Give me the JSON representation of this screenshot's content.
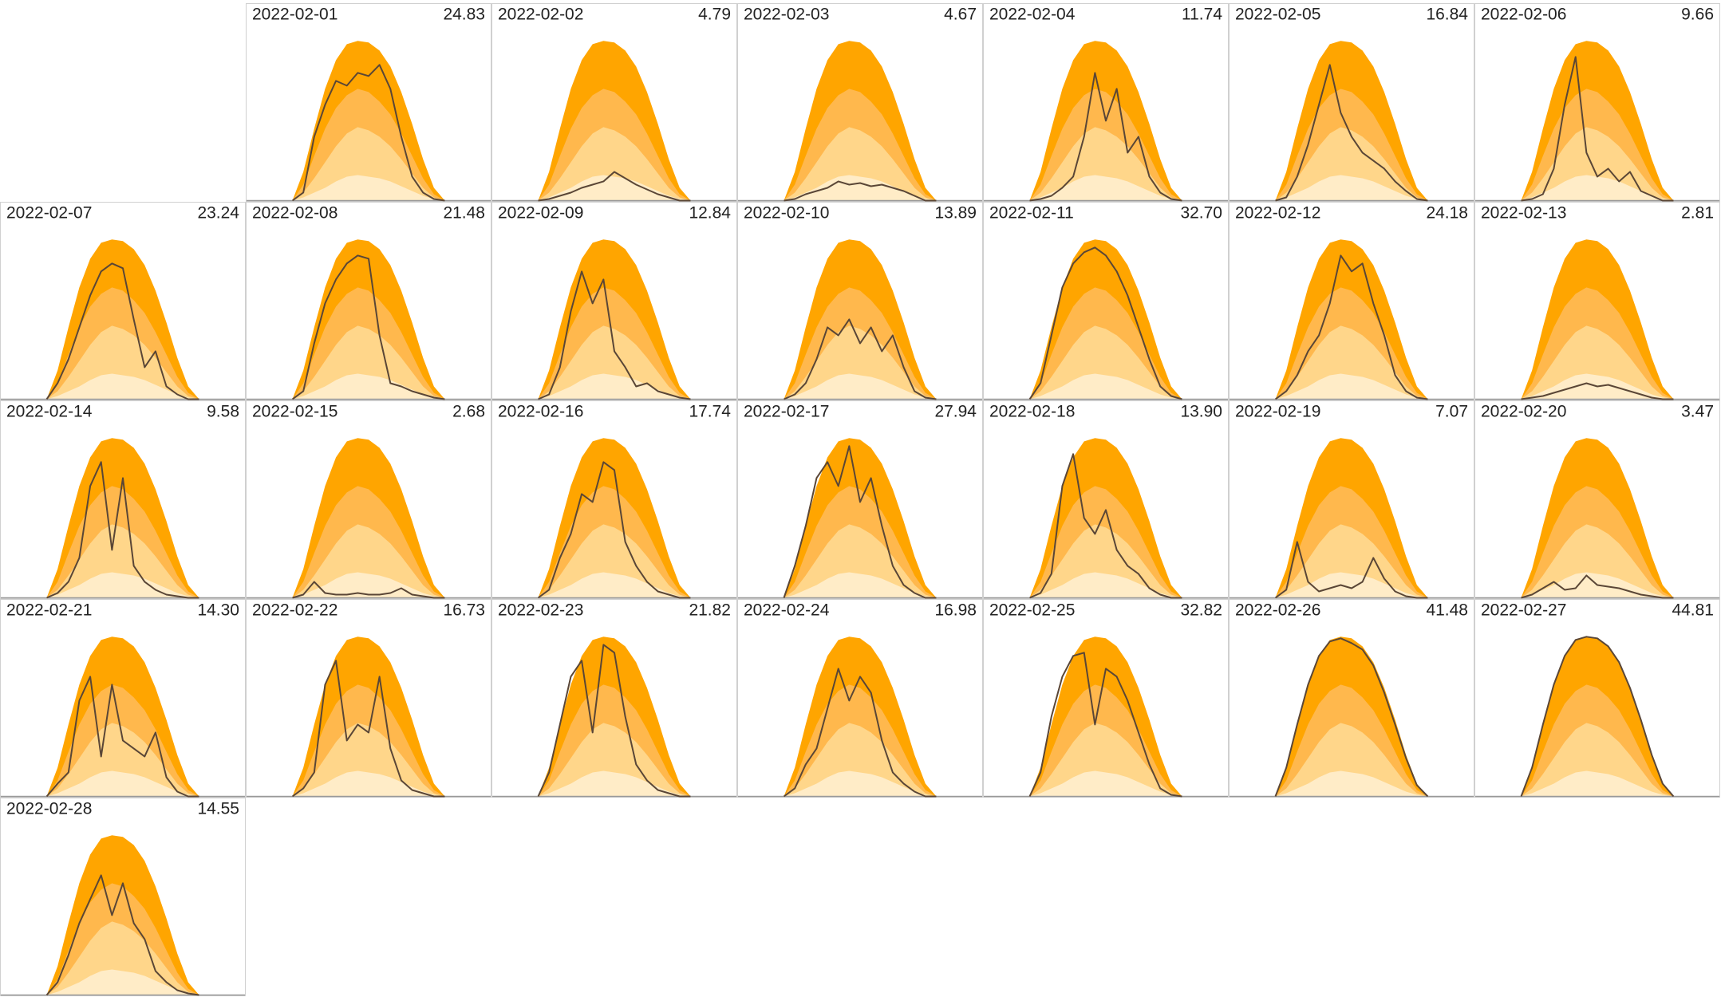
{
  "chart_data": {
    "type": "area",
    "ylim": [
      0,
      100
    ],
    "line_color": "#5a4636",
    "bands": [
      {
        "color": "#ffa500",
        "values": [
          0,
          18,
          45,
          70,
          88,
          98,
          100,
          99,
          94,
          84,
          68,
          48,
          26,
          8,
          0
        ]
      },
      {
        "color": "#ffb84d",
        "values": [
          0,
          10,
          28,
          45,
          58,
          66,
          70,
          68,
          62,
          54,
          42,
          28,
          14,
          4,
          0
        ]
      },
      {
        "color": "#ffd68a",
        "values": [
          0,
          5,
          14,
          24,
          34,
          42,
          46,
          44,
          40,
          34,
          26,
          17,
          8,
          2,
          0
        ]
      },
      {
        "color": "#ffecc7",
        "values": [
          0,
          2,
          5,
          8,
          12,
          15,
          16,
          15,
          14,
          12,
          9,
          6,
          3,
          1,
          0
        ]
      }
    ],
    "days": [
      {
        "date": "2022-02-01",
        "total": 24.83,
        "values": [
          0,
          5,
          40,
          60,
          75,
          72,
          80,
          78,
          85,
          70,
          40,
          15,
          5,
          1,
          0
        ]
      },
      {
        "date": "2022-02-02",
        "total": 4.79,
        "values": [
          0,
          1,
          3,
          5,
          8,
          10,
          12,
          18,
          14,
          10,
          7,
          4,
          2,
          0,
          0
        ]
      },
      {
        "date": "2022-02-03",
        "total": 4.67,
        "values": [
          0,
          1,
          4,
          6,
          8,
          12,
          10,
          11,
          9,
          10,
          8,
          6,
          3,
          0,
          0
        ]
      },
      {
        "date": "2022-02-04",
        "total": 11.74,
        "values": [
          0,
          1,
          3,
          8,
          15,
          40,
          80,
          50,
          70,
          30,
          40,
          15,
          5,
          1,
          0
        ]
      },
      {
        "date": "2022-02-05",
        "total": 16.84,
        "values": [
          0,
          2,
          15,
          35,
          60,
          85,
          55,
          40,
          30,
          25,
          20,
          12,
          6,
          1,
          0
        ]
      },
      {
        "date": "2022-02-06",
        "total": 9.66,
        "values": [
          0,
          1,
          4,
          20,
          60,
          90,
          30,
          15,
          20,
          12,
          18,
          6,
          3,
          0,
          0
        ]
      },
      {
        "date": "2022-02-07",
        "total": 23.24,
        "values": [
          0,
          10,
          25,
          45,
          65,
          80,
          85,
          82,
          50,
          20,
          30,
          8,
          3,
          0,
          0
        ]
      },
      {
        "date": "2022-02-08",
        "total": 21.48,
        "values": [
          0,
          5,
          35,
          60,
          75,
          85,
          90,
          88,
          40,
          10,
          8,
          5,
          3,
          1,
          0
        ]
      },
      {
        "date": "2022-02-09",
        "total": 12.84,
        "values": [
          0,
          3,
          20,
          55,
          80,
          60,
          75,
          30,
          20,
          8,
          10,
          5,
          3,
          1,
          0
        ]
      },
      {
        "date": "2022-02-10",
        "total": 13.89,
        "values": [
          0,
          3,
          10,
          25,
          45,
          40,
          50,
          35,
          45,
          30,
          40,
          20,
          5,
          1,
          0
        ]
      },
      {
        "date": "2022-02-11",
        "total": 32.7,
        "total_label": "32.70",
        "values": [
          0,
          10,
          40,
          70,
          85,
          92,
          95,
          90,
          80,
          65,
          45,
          25,
          8,
          2,
          0
        ]
      },
      {
        "date": "2022-02-12",
        "total": 24.18,
        "values": [
          0,
          5,
          15,
          30,
          40,
          60,
          90,
          80,
          85,
          60,
          40,
          15,
          5,
          1,
          0
        ]
      },
      {
        "date": "2022-02-13",
        "total": 2.81,
        "values": [
          0,
          1,
          2,
          4,
          6,
          8,
          10,
          8,
          9,
          7,
          5,
          3,
          1,
          0,
          0
        ]
      },
      {
        "date": "2022-02-14",
        "total": 9.58,
        "values": [
          0,
          3,
          10,
          25,
          70,
          85,
          30,
          75,
          20,
          10,
          5,
          2,
          1,
          0,
          0
        ]
      },
      {
        "date": "2022-02-15",
        "total": 2.68,
        "values": [
          0,
          2,
          10,
          3,
          2,
          2,
          3,
          2,
          2,
          3,
          6,
          2,
          1,
          0,
          0
        ]
      },
      {
        "date": "2022-02-16",
        "total": 17.74,
        "values": [
          0,
          5,
          25,
          40,
          65,
          60,
          85,
          80,
          35,
          20,
          10,
          4,
          2,
          0,
          0
        ]
      },
      {
        "date": "2022-02-17",
        "total": 27.94,
        "values": [
          0,
          20,
          45,
          75,
          85,
          70,
          95,
          60,
          75,
          45,
          20,
          8,
          3,
          0,
          0
        ]
      },
      {
        "date": "2022-02-18",
        "total": 13.9,
        "total_label": "13.90",
        "values": [
          0,
          3,
          15,
          70,
          90,
          50,
          40,
          55,
          30,
          20,
          15,
          6,
          2,
          0,
          0
        ]
      },
      {
        "date": "2022-02-19",
        "total": 7.07,
        "values": [
          0,
          5,
          35,
          10,
          4,
          6,
          8,
          6,
          10,
          25,
          12,
          4,
          1,
          0,
          0
        ]
      },
      {
        "date": "2022-02-20",
        "total": 3.47,
        "values": [
          0,
          2,
          6,
          10,
          5,
          6,
          14,
          8,
          7,
          6,
          4,
          2,
          1,
          0,
          0
        ]
      },
      {
        "date": "2022-02-21",
        "total": 14.3,
        "total_label": "14.30",
        "values": [
          0,
          8,
          15,
          60,
          75,
          25,
          70,
          35,
          30,
          25,
          40,
          12,
          3,
          0,
          0
        ]
      },
      {
        "date": "2022-02-22",
        "total": 16.73,
        "values": [
          0,
          5,
          15,
          70,
          85,
          35,
          45,
          40,
          75,
          30,
          10,
          4,
          2,
          0,
          0
        ]
      },
      {
        "date": "2022-02-23",
        "total": 21.82,
        "values": [
          0,
          15,
          45,
          75,
          85,
          40,
          95,
          90,
          50,
          20,
          10,
          4,
          2,
          0,
          0
        ]
      },
      {
        "date": "2022-02-24",
        "total": 16.98,
        "values": [
          0,
          5,
          20,
          30,
          55,
          80,
          60,
          75,
          65,
          35,
          15,
          8,
          3,
          0,
          0
        ]
      },
      {
        "date": "2022-02-25",
        "total": 32.82,
        "values": [
          0,
          15,
          50,
          75,
          88,
          90,
          45,
          80,
          75,
          60,
          40,
          20,
          5,
          1,
          0
        ]
      },
      {
        "date": "2022-02-26",
        "total": 41.48,
        "values": [
          0,
          18,
          45,
          70,
          88,
          97,
          99,
          96,
          92,
          82,
          65,
          45,
          24,
          7,
          0
        ]
      },
      {
        "date": "2022-02-27",
        "total": 44.81,
        "values": [
          0,
          18,
          45,
          70,
          88,
          98,
          100,
          99,
          94,
          84,
          68,
          48,
          26,
          8,
          0
        ]
      },
      {
        "date": "2022-02-28",
        "total": 14.55,
        "values": [
          0,
          8,
          25,
          45,
          60,
          75,
          50,
          70,
          45,
          35,
          15,
          8,
          3,
          1,
          0
        ]
      }
    ]
  }
}
